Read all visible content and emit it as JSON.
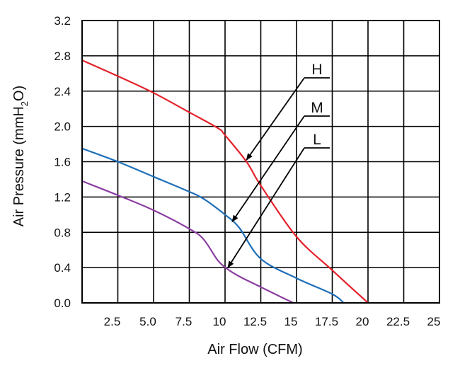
{
  "chart_data": {
    "type": "line",
    "xlabel": "Air Flow (CFM)",
    "ylabel": "Air Pressure (mmH₂O)",
    "ylabel_parts": {
      "main": "Air Pressure (mmH",
      "sub": "2",
      "tail": "O)"
    },
    "xlim": [
      0,
      25
    ],
    "ylim": [
      0,
      3.2
    ],
    "x_ticks": [
      "2.5",
      "5.0",
      "7.5",
      "10",
      "12.5",
      "15",
      "17.5",
      "20",
      "22.5",
      "25"
    ],
    "x_tick_values": [
      2.5,
      5,
      7.5,
      10,
      12.5,
      15,
      17.5,
      20,
      22.5,
      25
    ],
    "y_ticks": [
      "0.0",
      "0.4",
      "0.8",
      "1.2",
      "1.6",
      "2.0",
      "2.4",
      "2.8",
      "3.2"
    ],
    "y_tick_values": [
      0,
      0.4,
      0.8,
      1.2,
      1.6,
      2.0,
      2.4,
      2.8,
      3.2
    ],
    "grid": true,
    "series": [
      {
        "name": "H",
        "color": "#e3222b",
        "x": [
          0,
          2.5,
          5,
          7.5,
          9.5,
          10,
          11.5,
          12.5,
          15,
          17.5,
          20
        ],
        "y": [
          2.75,
          2.57,
          2.38,
          2.16,
          1.98,
          1.9,
          1.6,
          1.33,
          0.75,
          0.37,
          0.0
        ]
      },
      {
        "name": "M",
        "color": "#1e6fb8",
        "x": [
          0,
          2.5,
          5,
          7.5,
          8.5,
          10,
          11,
          12.5,
          15,
          17.5,
          18.3
        ],
        "y": [
          1.75,
          1.6,
          1.43,
          1.26,
          1.18,
          1.0,
          0.85,
          0.5,
          0.28,
          0.1,
          0.0
        ]
      },
      {
        "name": "L",
        "color": "#8b3fa0",
        "x": [
          0,
          2.5,
          5,
          7.5,
          8.5,
          9.5,
          10.2,
          11,
          12.5,
          14,
          14.8
        ],
        "y": [
          1.38,
          1.22,
          1.05,
          0.84,
          0.72,
          0.48,
          0.38,
          0.3,
          0.18,
          0.06,
          0.0
        ]
      }
    ],
    "annotations": [
      {
        "label": "H",
        "color": "#000000",
        "target": [
          11.5,
          1.62
        ]
      },
      {
        "label": "M",
        "color": "#000000",
        "target": [
          10.5,
          0.92
        ]
      },
      {
        "label": "L",
        "color": "#000000",
        "target": [
          10.2,
          0.4
        ]
      }
    ]
  }
}
